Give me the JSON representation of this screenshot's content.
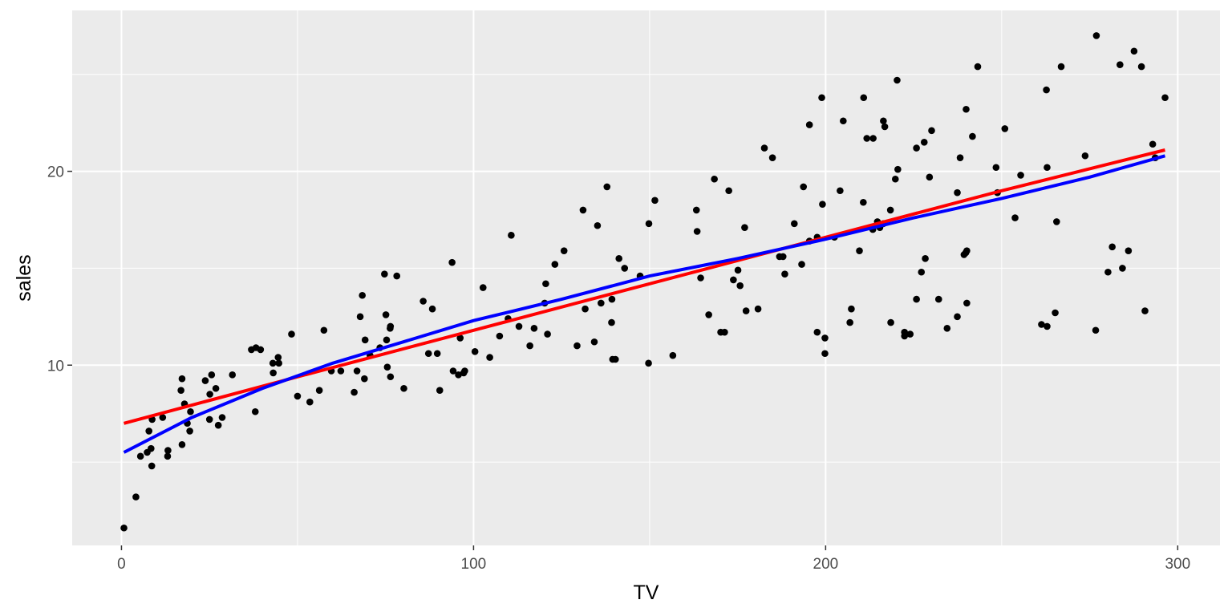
{
  "chart_data": {
    "type": "scatter",
    "xlabel": "TV",
    "ylabel": "sales",
    "xlim": [
      -14,
      312
    ],
    "ylim": [
      0.7,
      28.3
    ],
    "x_ticks": [
      0,
      100,
      200,
      300
    ],
    "y_ticks": [
      10,
      20
    ],
    "x_minor": [
      50,
      150,
      250
    ],
    "y_minor": [
      5,
      15,
      25
    ],
    "grid": true,
    "colors": {
      "panel": "#ebebeb",
      "grid": "#ffffff",
      "points": "#000000",
      "fit_linear": "#ff0000",
      "fit_smooth": "#0000ff"
    },
    "points": [
      [
        0.7,
        1.6
      ],
      [
        4.1,
        3.2
      ],
      [
        5.4,
        5.3
      ],
      [
        7.3,
        5.5
      ],
      [
        7.8,
        6.6
      ],
      [
        8.4,
        5.7
      ],
      [
        8.6,
        4.8
      ],
      [
        8.7,
        7.2
      ],
      [
        11.7,
        7.3
      ],
      [
        13.1,
        5.3
      ],
      [
        13.2,
        5.6
      ],
      [
        16.9,
        8.7
      ],
      [
        17.2,
        5.9
      ],
      [
        17.2,
        9.3
      ],
      [
        17.9,
        8.0
      ],
      [
        18.7,
        7.0
      ],
      [
        19.4,
        6.6
      ],
      [
        19.6,
        7.6
      ],
      [
        23.8,
        9.2
      ],
      [
        25.0,
        7.2
      ],
      [
        25.1,
        8.5
      ],
      [
        25.6,
        9.5
      ],
      [
        26.8,
        8.8
      ],
      [
        27.5,
        6.9
      ],
      [
        28.6,
        7.3
      ],
      [
        31.5,
        9.5
      ],
      [
        36.9,
        10.8
      ],
      [
        38.0,
        7.6
      ],
      [
        38.2,
        10.9
      ],
      [
        39.5,
        10.8
      ],
      [
        43.0,
        10.1
      ],
      [
        43.1,
        9.6
      ],
      [
        44.5,
        10.4
      ],
      [
        44.7,
        10.1
      ],
      [
        48.3,
        11.6
      ],
      [
        50.0,
        8.4
      ],
      [
        53.5,
        8.1
      ],
      [
        56.2,
        8.7
      ],
      [
        57.5,
        11.8
      ],
      [
        59.6,
        9.7
      ],
      [
        62.3,
        9.7
      ],
      [
        66.1,
        8.6
      ],
      [
        66.9,
        9.7
      ],
      [
        67.8,
        12.5
      ],
      [
        68.4,
        13.6
      ],
      [
        69.0,
        9.3
      ],
      [
        69.2,
        11.3
      ],
      [
        70.6,
        10.5
      ],
      [
        73.4,
        10.9
      ],
      [
        74.7,
        14.7
      ],
      [
        75.1,
        12.6
      ],
      [
        75.3,
        11.3
      ],
      [
        75.5,
        9.9
      ],
      [
        76.3,
        11.9
      ],
      [
        76.4,
        9.4
      ],
      [
        76.4,
        12.0
      ],
      [
        78.2,
        14.6
      ],
      [
        80.2,
        8.8
      ],
      [
        85.7,
        13.3
      ],
      [
        87.2,
        10.6
      ],
      [
        88.3,
        12.9
      ],
      [
        89.7,
        10.6
      ],
      [
        90.4,
        8.7
      ],
      [
        93.9,
        15.3
      ],
      [
        94.2,
        9.7
      ],
      [
        95.7,
        9.5
      ],
      [
        96.2,
        11.4
      ],
      [
        97.2,
        9.6
      ],
      [
        97.5,
        9.7
      ],
      [
        100.4,
        10.7
      ],
      [
        102.7,
        14.0
      ],
      [
        104.6,
        10.4
      ],
      [
        107.4,
        11.5
      ],
      [
        109.8,
        12.4
      ],
      [
        110.7,
        16.7
      ],
      [
        112.9,
        12.0
      ],
      [
        116.0,
        11.0
      ],
      [
        117.2,
        11.9
      ],
      [
        120.2,
        13.2
      ],
      [
        120.5,
        14.2
      ],
      [
        121.0,
        11.6
      ],
      [
        123.1,
        15.2
      ],
      [
        125.7,
        15.9
      ],
      [
        129.4,
        11.0
      ],
      [
        131.1,
        18.0
      ],
      [
        131.7,
        12.9
      ],
      [
        134.3,
        11.2
      ],
      [
        135.2,
        17.2
      ],
      [
        136.2,
        13.2
      ],
      [
        137.9,
        19.2
      ],
      [
        139.2,
        12.2
      ],
      [
        139.3,
        13.4
      ],
      [
        139.5,
        10.3
      ],
      [
        140.3,
        10.3
      ],
      [
        141.3,
        15.5
      ],
      [
        142.9,
        15.0
      ],
      [
        147.3,
        14.6
      ],
      [
        149.7,
        10.1
      ],
      [
        149.8,
        17.3
      ],
      [
        151.5,
        18.5
      ],
      [
        156.6,
        10.5
      ],
      [
        163.3,
        18.0
      ],
      [
        163.5,
        16.9
      ],
      [
        164.5,
        14.5
      ],
      [
        166.8,
        12.6
      ],
      [
        168.4,
        19.6
      ],
      [
        170.2,
        11.7
      ],
      [
        171.3,
        11.7
      ],
      [
        172.5,
        19.0
      ],
      [
        173.8,
        14.4
      ],
      [
        175.1,
        14.9
      ],
      [
        175.7,
        14.1
      ],
      [
        177.0,
        17.1
      ],
      [
        177.4,
        12.8
      ],
      [
        180.8,
        12.9
      ],
      [
        182.6,
        21.2
      ],
      [
        184.9,
        20.7
      ],
      [
        186.9,
        15.6
      ],
      [
        187.9,
        15.6
      ],
      [
        188.4,
        14.7
      ],
      [
        191.1,
        17.3
      ],
      [
        193.2,
        15.2
      ],
      [
        193.7,
        19.2
      ],
      [
        195.4,
        22.4
      ],
      [
        197.6,
        11.7
      ],
      [
        197.6,
        16.6
      ],
      [
        198.9,
        23.8
      ],
      [
        199.1,
        18.3
      ],
      [
        199.8,
        11.4
      ],
      [
        199.8,
        10.6
      ],
      [
        202.5,
        16.6
      ],
      [
        204.1,
        19.0
      ],
      [
        205.0,
        22.6
      ],
      [
        206.9,
        12.2
      ],
      [
        207.3,
        12.9
      ],
      [
        209.6,
        15.9
      ],
      [
        210.7,
        18.4
      ],
      [
        210.8,
        23.8
      ],
      [
        213.4,
        17.0
      ],
      [
        213.5,
        21.7
      ],
      [
        214.7,
        17.4
      ],
      [
        215.4,
        17.1
      ],
      [
        216.4,
        22.6
      ],
      [
        216.8,
        22.3
      ],
      [
        218.4,
        18.0
      ],
      [
        218.5,
        12.2
      ],
      [
        219.8,
        19.6
      ],
      [
        220.5,
        20.1
      ],
      [
        220.3,
        24.7
      ],
      [
        222.4,
        11.5
      ],
      [
        222.4,
        11.7
      ],
      [
        224.0,
        11.6
      ],
      [
        225.8,
        13.4
      ],
      [
        227.2,
        14.8
      ],
      [
        228.0,
        21.5
      ],
      [
        228.3,
        15.5
      ],
      [
        229.5,
        19.7
      ],
      [
        230.1,
        22.1
      ],
      [
        232.1,
        13.4
      ],
      [
        234.5,
        11.9
      ],
      [
        237.4,
        12.5
      ],
      [
        237.4,
        18.9
      ],
      [
        238.2,
        20.7
      ],
      [
        239.3,
        15.7
      ],
      [
        239.8,
        15.8
      ],
      [
        239.9,
        23.2
      ],
      [
        240.1,
        13.2
      ],
      [
        240.1,
        15.9
      ],
      [
        241.7,
        21.8
      ],
      [
        243.2,
        25.4
      ],
      [
        248.4,
        20.2
      ],
      [
        248.8,
        18.9
      ],
      [
        250.9,
        22.2
      ],
      [
        253.8,
        17.6
      ],
      [
        255.4,
        19.8
      ],
      [
        262.7,
        24.2
      ],
      [
        262.9,
        20.2
      ],
      [
        265.2,
        12.7
      ],
      [
        265.6,
        17.4
      ],
      [
        266.9,
        25.4
      ],
      [
        276.7,
        11.8
      ],
      [
        276.9,
        27.0
      ],
      [
        280.2,
        14.8
      ],
      [
        281.4,
        16.1
      ],
      [
        283.6,
        25.5
      ],
      [
        284.3,
        15.0
      ],
      [
        286.0,
        15.9
      ],
      [
        287.6,
        26.2
      ],
      [
        289.7,
        25.4
      ],
      [
        290.7,
        12.8
      ],
      [
        292.9,
        21.4
      ],
      [
        293.6,
        20.7
      ],
      [
        296.4,
        23.8
      ],
      [
        273.7,
        20.8
      ],
      [
        261.3,
        12.1
      ],
      [
        262.9,
        12.0
      ],
      [
        211.7,
        21.7
      ],
      [
        216.4,
        17.3
      ],
      [
        225.8,
        21.2
      ],
      [
        195.4,
        16.4
      ]
    ],
    "fit_linear": [
      [
        0.7,
        7.0
      ],
      [
        50,
        9.4
      ],
      [
        100,
        11.8
      ],
      [
        150,
        14.2
      ],
      [
        200,
        16.6
      ],
      [
        250,
        19.0
      ],
      [
        296.4,
        21.1
      ]
    ],
    "fit_smooth": [
      [
        0.7,
        5.5
      ],
      [
        20,
        7.3
      ],
      [
        40,
        8.8
      ],
      [
        60,
        10.1
      ],
      [
        80,
        11.2
      ],
      [
        100,
        12.3
      ],
      [
        125,
        13.4
      ],
      [
        150,
        14.6
      ],
      [
        175,
        15.5
      ],
      [
        200,
        16.5
      ],
      [
        225,
        17.6
      ],
      [
        250,
        18.6
      ],
      [
        275,
        19.7
      ],
      [
        296.4,
        20.8
      ]
    ]
  }
}
